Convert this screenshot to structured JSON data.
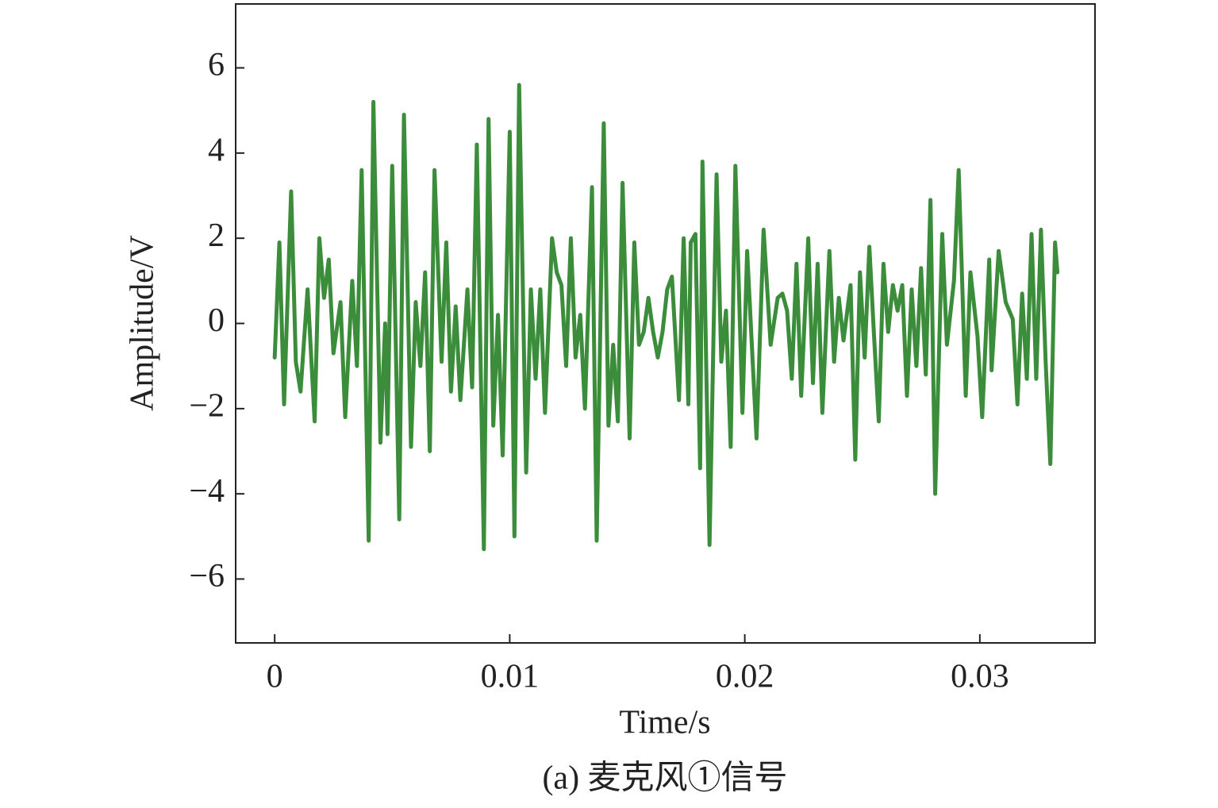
{
  "chart_data": {
    "type": "line",
    "xlabel": "Time/s",
    "ylabel": "Amplitude/V",
    "caption": "(a) 麦克风①信号",
    "xlim": [
      -0.00166,
      0.0349
    ],
    "ylim": [
      -7.5,
      7.5
    ],
    "xticks": [
      0,
      0.01,
      0.02,
      0.03
    ],
    "yticks": [
      {
        "value": -6,
        "label": "−6"
      },
      {
        "value": -4,
        "label": "−4"
      },
      {
        "value": -2,
        "label": "−2"
      },
      0,
      2,
      4,
      6
    ],
    "grid": false,
    "series": [
      {
        "name": "signal",
        "color": "#3b8d3b",
        "x": [
          0,
          0.0002,
          0.0004,
          0.0007,
          0.0009,
          0.0011,
          0.0014,
          0.0017,
          0.0019,
          0.0021,
          0.0023,
          0.0025,
          0.0028,
          0.003,
          0.0033,
          0.0035,
          0.0037,
          0.004,
          0.0042,
          0.0045,
          0.0047,
          0.0048,
          0.005,
          0.0053,
          0.0055,
          0.0058,
          0.006,
          0.0062,
          0.0064,
          0.0066,
          0.0068,
          0.0071,
          0.0073,
          0.0075,
          0.0077,
          0.0079,
          0.0082,
          0.0084,
          0.0086,
          0.0089,
          0.0091,
          0.0093,
          0.0095,
          0.0097,
          0.01,
          0.0102,
          0.0104,
          0.0107,
          0.0109,
          0.0111,
          0.0113,
          0.0115,
          0.0118,
          0.012,
          0.0122,
          0.0124,
          0.0126,
          0.0128,
          0.013,
          0.0132,
          0.0135,
          0.0137,
          0.014,
          0.0142,
          0.0144,
          0.0146,
          0.0148,
          0.0151,
          0.0153,
          0.0155,
          0.0157,
          0.0159,
          0.0161,
          0.0163,
          0.0165,
          0.0167,
          0.0169,
          0.0172,
          0.0174,
          0.0176,
          0.0177,
          0.0179,
          0.0181,
          0.0182,
          0.0185,
          0.0188,
          0.019,
          0.0192,
          0.0194,
          0.0196,
          0.0199,
          0.0201,
          0.0203,
          0.0205,
          0.0208,
          0.0211,
          0.0214,
          0.0216,
          0.0218,
          0.022,
          0.0222,
          0.0224,
          0.0227,
          0.0229,
          0.0231,
          0.0233,
          0.0236,
          0.0238,
          0.024,
          0.0242,
          0.0245,
          0.0247,
          0.0249,
          0.0251,
          0.0253,
          0.0255,
          0.0257,
          0.0259,
          0.0261,
          0.0263,
          0.0265,
          0.0267,
          0.0269,
          0.0271,
          0.0273,
          0.0275,
          0.0277,
          0.0279,
          0.0281,
          0.0284,
          0.0286,
          0.0289,
          0.0291,
          0.0294,
          0.0296,
          0.0299,
          0.0301,
          0.0304,
          0.0305,
          0.0308,
          0.0311,
          0.0314,
          0.0316,
          0.0318,
          0.032,
          0.0322,
          0.0324,
          0.0326,
          0.0328,
          0.033,
          0.0332,
          0.0333
        ],
        "values": [
          -0.8,
          1.9,
          -1.9,
          3.1,
          -0.9,
          -1.6,
          0.8,
          -2.3,
          2.0,
          0.6,
          1.5,
          -0.7,
          0.5,
          -2.2,
          1.0,
          -1.0,
          3.6,
          -5.1,
          5.2,
          -2.8,
          0.0,
          -2.6,
          3.7,
          -4.6,
          4.9,
          -2.9,
          0.5,
          -1.0,
          1.2,
          -3.0,
          3.6,
          -0.9,
          1.9,
          -1.6,
          0.4,
          -1.8,
          0.8,
          -1.5,
          4.2,
          -5.3,
          4.8,
          -2.4,
          0.2,
          -3.1,
          4.5,
          -5.0,
          5.6,
          -3.5,
          0.8,
          -1.3,
          0.8,
          -2.1,
          2.0,
          1.2,
          0.9,
          -1.0,
          2.0,
          -0.8,
          0.2,
          -2.0,
          3.2,
          -5.1,
          4.7,
          -2.4,
          -0.5,
          -2.3,
          3.3,
          -2.7,
          1.9,
          -0.5,
          -0.2,
          0.6,
          -0.2,
          -0.8,
          -0.2,
          0.8,
          1.1,
          -1.8,
          2.0,
          -1.9,
          1.9,
          2.1,
          -3.4,
          3.8,
          -5.2,
          3.5,
          -0.9,
          0.3,
          -2.9,
          3.7,
          -2.1,
          1.7,
          -0.5,
          -2.7,
          2.2,
          -0.5,
          0.6,
          0.7,
          0.3,
          -1.3,
          1.4,
          -1.7,
          2.0,
          -1.4,
          1.4,
          -2.1,
          1.7,
          -0.9,
          0.6,
          -0.4,
          0.9,
          -3.2,
          1.2,
          -0.8,
          1.8,
          -0.3,
          -2.3,
          1.4,
          -0.2,
          0.9,
          0.3,
          0.9,
          -1.7,
          0.8,
          -1.0,
          1.3,
          -1.2,
          2.9,
          -4.0,
          2.1,
          -0.5,
          1.0,
          3.6,
          -1.7,
          1.2,
          -0.3,
          -2.2,
          1.5,
          -1.1,
          1.7,
          0.5,
          0.1,
          -1.9,
          0.7,
          -1.3,
          2.1,
          -1.3,
          2.2,
          -0.9,
          -3.3,
          1.9,
          1.2
        ]
      }
    ]
  }
}
